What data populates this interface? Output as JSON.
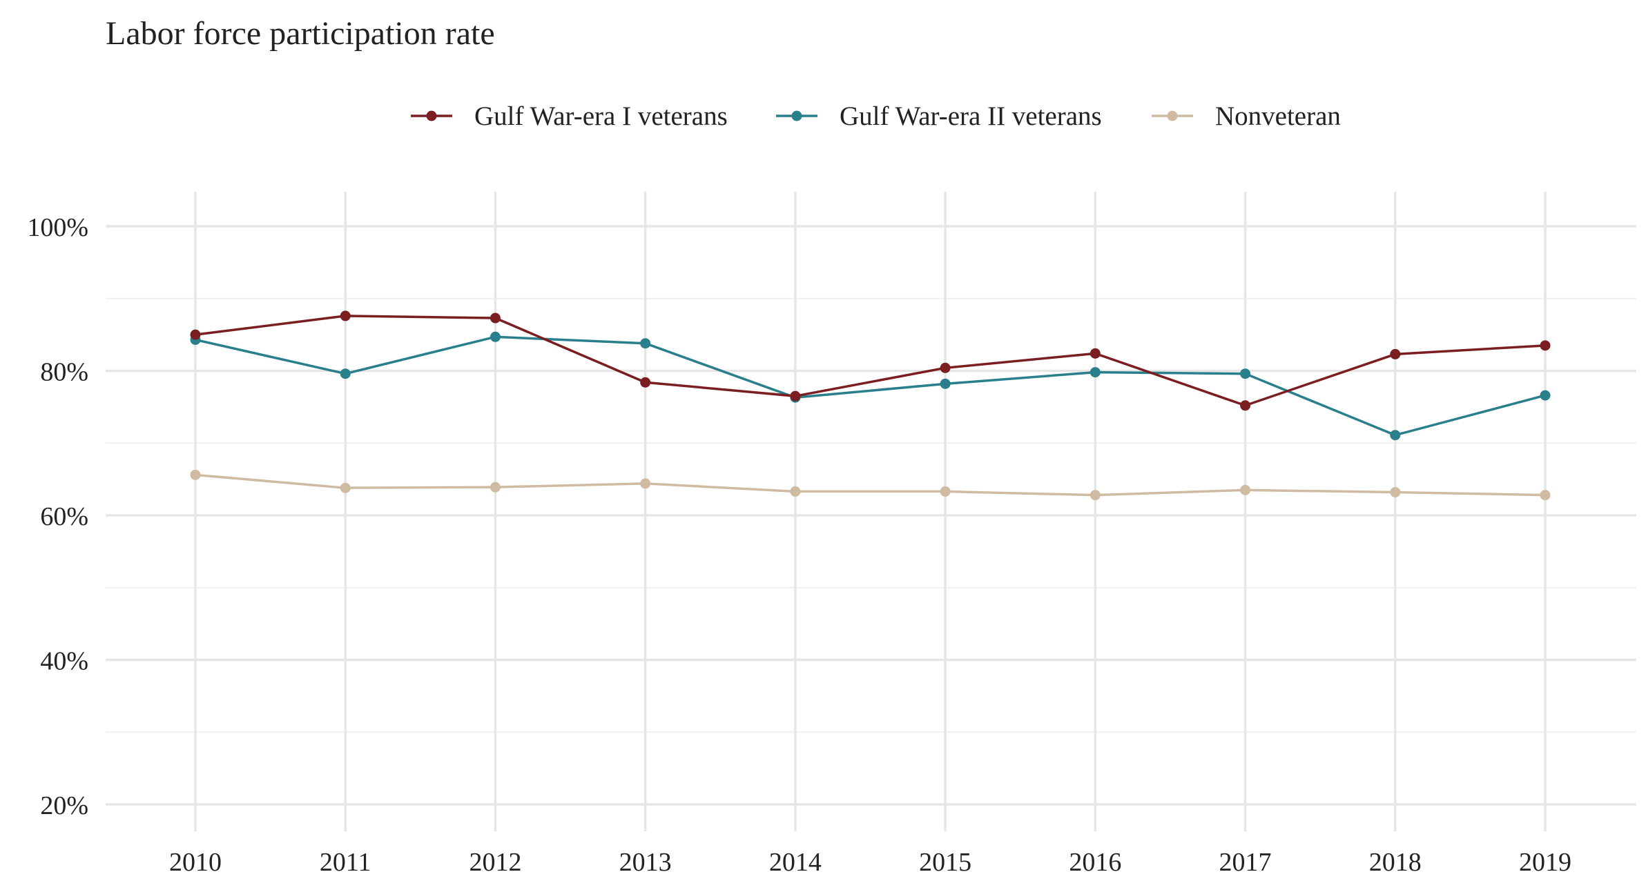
{
  "chart_data": {
    "type": "line",
    "title": "Labor force participation rate",
    "xlabel": "",
    "ylabel": "",
    "x": [
      "2010",
      "2011",
      "2012",
      "2013",
      "2014",
      "2015",
      "2016",
      "2017",
      "2018",
      "2019"
    ],
    "ylim": [
      20,
      100
    ],
    "yticks": [
      20,
      40,
      60,
      80,
      100
    ],
    "ytick_labels": [
      "20%",
      "40%",
      "60%",
      "80%",
      "100%"
    ],
    "grid": true,
    "legend_position": "top",
    "series": [
      {
        "name": "Gulf War-era I veterans",
        "color": "#7b1e22",
        "values": [
          85.0,
          87.6,
          87.3,
          78.4,
          76.5,
          80.4,
          82.4,
          75.2,
          82.3,
          83.5
        ]
      },
      {
        "name": "Gulf War-era II veterans",
        "color": "#2a7f8c",
        "values": [
          84.3,
          79.6,
          84.7,
          83.8,
          76.3,
          78.2,
          79.8,
          79.6,
          71.1,
          76.6
        ]
      },
      {
        "name": "Nonveteran",
        "color": "#cfbba1",
        "values": [
          65.6,
          63.8,
          63.9,
          64.4,
          63.3,
          63.3,
          62.8,
          63.5,
          63.2,
          62.8
        ]
      }
    ]
  }
}
